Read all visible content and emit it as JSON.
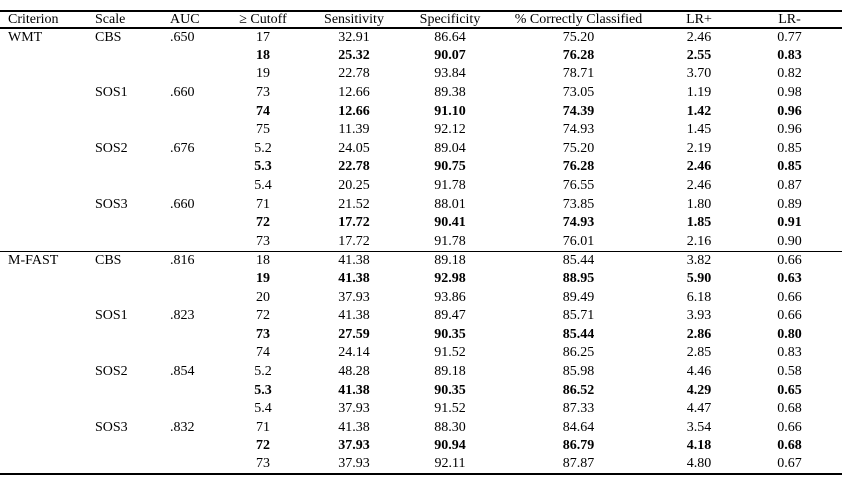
{
  "table": {
    "columns": [
      "Criterion",
      "Scale",
      "AUC",
      "≥ Cutoff",
      "Sensitivity",
      "Specificity",
      "% Correctly Classified",
      "LR+",
      "LR-"
    ],
    "text_color": "#000000",
    "background_color": "#ffffff",
    "sections": [
      {
        "criterion": "WMT",
        "scales": [
          {
            "scale": "CBS",
            "auc": ".650",
            "rows": [
              {
                "cutoff": "17",
                "sensitivity": "32.91",
                "specificity": "86.64",
                "pct_correct": "75.20",
                "lr_plus": "2.46",
                "lr_minus": "0.77",
                "bold": false
              },
              {
                "cutoff": "18",
                "sensitivity": "25.32",
                "specificity": "90.07",
                "pct_correct": "76.28",
                "lr_plus": "2.55",
                "lr_minus": "0.83",
                "bold": true
              },
              {
                "cutoff": "19",
                "sensitivity": "22.78",
                "specificity": "93.84",
                "pct_correct": "78.71",
                "lr_plus": "3.70",
                "lr_minus": "0.82",
                "bold": false
              }
            ]
          },
          {
            "scale": "SOS1",
            "auc": ".660",
            "rows": [
              {
                "cutoff": "73",
                "sensitivity": "12.66",
                "specificity": "89.38",
                "pct_correct": "73.05",
                "lr_plus": "1.19",
                "lr_minus": "0.98",
                "bold": false
              },
              {
                "cutoff": "74",
                "sensitivity": "12.66",
                "specificity": "91.10",
                "pct_correct": "74.39",
                "lr_plus": "1.42",
                "lr_minus": "0.96",
                "bold": true
              },
              {
                "cutoff": "75",
                "sensitivity": "11.39",
                "specificity": "92.12",
                "pct_correct": "74.93",
                "lr_plus": "1.45",
                "lr_minus": "0.96",
                "bold": false
              }
            ]
          },
          {
            "scale": "SOS2",
            "auc": ".676",
            "rows": [
              {
                "cutoff": "5.2",
                "sensitivity": "24.05",
                "specificity": "89.04",
                "pct_correct": "75.20",
                "lr_plus": "2.19",
                "lr_minus": "0.85",
                "bold": false
              },
              {
                "cutoff": "5.3",
                "sensitivity": "22.78",
                "specificity": "90.75",
                "pct_correct": "76.28",
                "lr_plus": "2.46",
                "lr_minus": "0.85",
                "bold": true
              },
              {
                "cutoff": "5.4",
                "sensitivity": "20.25",
                "specificity": "91.78",
                "pct_correct": "76.55",
                "lr_plus": "2.46",
                "lr_minus": "0.87",
                "bold": false
              }
            ]
          },
          {
            "scale": "SOS3",
            "auc": ".660",
            "rows": [
              {
                "cutoff": "71",
                "sensitivity": "21.52",
                "specificity": "88.01",
                "pct_correct": "73.85",
                "lr_plus": "1.80",
                "lr_minus": "0.89",
                "bold": false
              },
              {
                "cutoff": "72",
                "sensitivity": "17.72",
                "specificity": "90.41",
                "pct_correct": "74.93",
                "lr_plus": "1.85",
                "lr_minus": "0.91",
                "bold": true
              },
              {
                "cutoff": "73",
                "sensitivity": "17.72",
                "specificity": "91.78",
                "pct_correct": "76.01",
                "lr_plus": "2.16",
                "lr_minus": "0.90",
                "bold": false
              }
            ]
          }
        ]
      },
      {
        "criterion": "M-FAST",
        "scales": [
          {
            "scale": "CBS",
            "auc": ".816",
            "rows": [
              {
                "cutoff": "18",
                "sensitivity": "41.38",
                "specificity": "89.18",
                "pct_correct": "85.44",
                "lr_plus": "3.82",
                "lr_minus": "0.66",
                "bold": false
              },
              {
                "cutoff": "19",
                "sensitivity": "41.38",
                "specificity": "92.98",
                "pct_correct": "88.95",
                "lr_plus": "5.90",
                "lr_minus": "0.63",
                "bold": true
              },
              {
                "cutoff": "20",
                "sensitivity": "37.93",
                "specificity": "93.86",
                "pct_correct": "89.49",
                "lr_plus": "6.18",
                "lr_minus": "0.66",
                "bold": false
              }
            ]
          },
          {
            "scale": "SOS1",
            "auc": ".823",
            "rows": [
              {
                "cutoff": "72",
                "sensitivity": "41.38",
                "specificity": "89.47",
                "pct_correct": "85.71",
                "lr_plus": "3.93",
                "lr_minus": "0.66",
                "bold": false
              },
              {
                "cutoff": "73",
                "sensitivity": "27.59",
                "specificity": "90.35",
                "pct_correct": "85.44",
                "lr_plus": "2.86",
                "lr_minus": "0.80",
                "bold": true
              },
              {
                "cutoff": "74",
                "sensitivity": "24.14",
                "specificity": "91.52",
                "pct_correct": "86.25",
                "lr_plus": "2.85",
                "lr_minus": "0.83",
                "bold": false
              }
            ]
          },
          {
            "scale": "SOS2",
            "auc": ".854",
            "rows": [
              {
                "cutoff": "5.2",
                "sensitivity": "48.28",
                "specificity": "89.18",
                "pct_correct": "85.98",
                "lr_plus": "4.46",
                "lr_minus": "0.58",
                "bold": false
              },
              {
                "cutoff": "5.3",
                "sensitivity": "41.38",
                "specificity": "90.35",
                "pct_correct": "86.52",
                "lr_plus": "4.29",
                "lr_minus": "0.65",
                "bold": true
              },
              {
                "cutoff": "5.4",
                "sensitivity": "37.93",
                "specificity": "91.52",
                "pct_correct": "87.33",
                "lr_plus": "4.47",
                "lr_minus": "0.68",
                "bold": false
              }
            ]
          },
          {
            "scale": "SOS3",
            "auc": ".832",
            "rows": [
              {
                "cutoff": "71",
                "sensitivity": "41.38",
                "specificity": "88.30",
                "pct_correct": "84.64",
                "lr_plus": "3.54",
                "lr_minus": "0.66",
                "bold": false
              },
              {
                "cutoff": "72",
                "sensitivity": "37.93",
                "specificity": "90.94",
                "pct_correct": "86.79",
                "lr_plus": "4.18",
                "lr_minus": "0.68",
                "bold": true
              },
              {
                "cutoff": "73",
                "sensitivity": "37.93",
                "specificity": "92.11",
                "pct_correct": "87.87",
                "lr_plus": "4.80",
                "lr_minus": "0.67",
                "bold": false
              }
            ]
          }
        ]
      }
    ]
  }
}
